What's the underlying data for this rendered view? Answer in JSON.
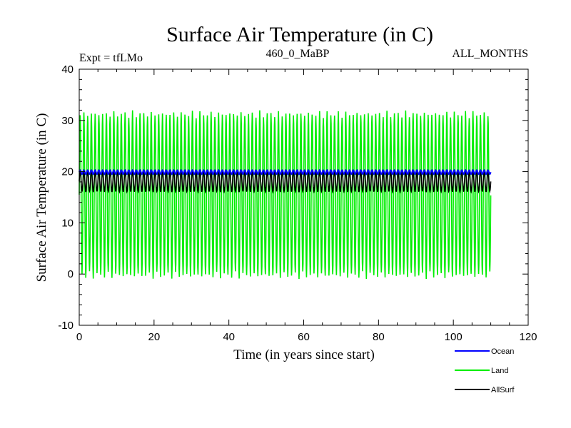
{
  "chart_data": {
    "type": "line",
    "title": "Surface Air Temperature (in C)",
    "subtitle_left": "Expt = tfLMo",
    "subtitle_center": "460_0_MaBP",
    "subtitle_right": "ALL_MONTHS",
    "xlabel": "Time (in years since start)",
    "ylabel": "Surface Air Temperature (in C)",
    "xlim": [
      0,
      120
    ],
    "ylim": [
      -10,
      40
    ],
    "xticks": [
      0,
      20,
      40,
      60,
      80,
      100,
      120
    ],
    "yticks": [
      -10,
      0,
      10,
      20,
      30,
      40
    ],
    "x_end": 110,
    "cycles_per_year": 1,
    "series": [
      {
        "name": "Ocean",
        "color": "#0000ff",
        "mean": 19.9,
        "amplitude": 0.4,
        "min": 19.4,
        "max": 20.6
      },
      {
        "name": "Land",
        "color": "#00ee00",
        "mean": 15.5,
        "amplitude": 15.7,
        "min": -1.3,
        "max": 32.2
      },
      {
        "name": "AllSurf",
        "color": "#000000",
        "mean": 18.1,
        "amplitude": 2.0,
        "min": 15.8,
        "max": 20.2
      }
    ]
  }
}
